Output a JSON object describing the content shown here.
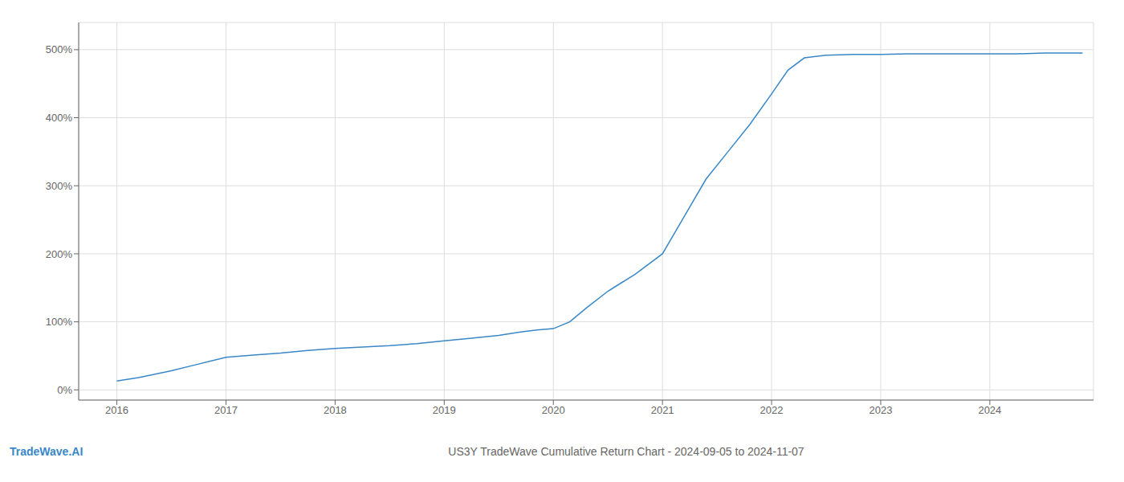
{
  "chart_data": {
    "type": "line",
    "title": "US3Y TradeWave Cumulative Return Chart - 2024-09-05 to 2024-11-07",
    "x": [
      2016.0,
      2016.2,
      2016.5,
      2016.75,
      2017.0,
      2017.25,
      2017.5,
      2017.75,
      2018.0,
      2018.25,
      2018.5,
      2018.75,
      2019.0,
      2019.25,
      2019.5,
      2019.7,
      2019.85,
      2020.0,
      2020.15,
      2020.3,
      2020.5,
      2020.75,
      2021.0,
      2021.2,
      2021.4,
      2021.6,
      2021.8,
      2022.0,
      2022.15,
      2022.3,
      2022.5,
      2022.75,
      2023.0,
      2023.25,
      2023.5,
      2023.75,
      2024.0,
      2024.25,
      2024.5,
      2024.85
    ],
    "values": [
      13,
      18,
      28,
      38,
      48,
      51,
      54,
      58,
      61,
      63,
      65,
      68,
      72,
      76,
      80,
      85,
      88,
      90,
      100,
      120,
      145,
      170,
      200,
      255,
      310,
      350,
      390,
      435,
      470,
      488,
      492,
      493,
      493,
      494,
      494,
      494,
      494,
      494,
      495,
      495
    ],
    "color": "#3a87c8",
    "xlim": [
      2015.65,
      2024.95
    ],
    "ylim": [
      -15,
      540
    ],
    "xticks": [
      2016,
      2017,
      2018,
      2019,
      2020,
      2021,
      2022,
      2023,
      2024
    ],
    "yticks": [
      {
        "value": 0,
        "label": "0%"
      },
      {
        "value": 100,
        "label": "100%"
      },
      {
        "value": 200,
        "label": "200%"
      },
      {
        "value": 300,
        "label": "300%"
      },
      {
        "value": 400,
        "label": "400%"
      },
      {
        "value": 500,
        "label": "500%"
      }
    ],
    "grid": true,
    "annotations": [
      {
        "text": "TradeWave.AI",
        "color": "#3a87c8"
      }
    ]
  }
}
